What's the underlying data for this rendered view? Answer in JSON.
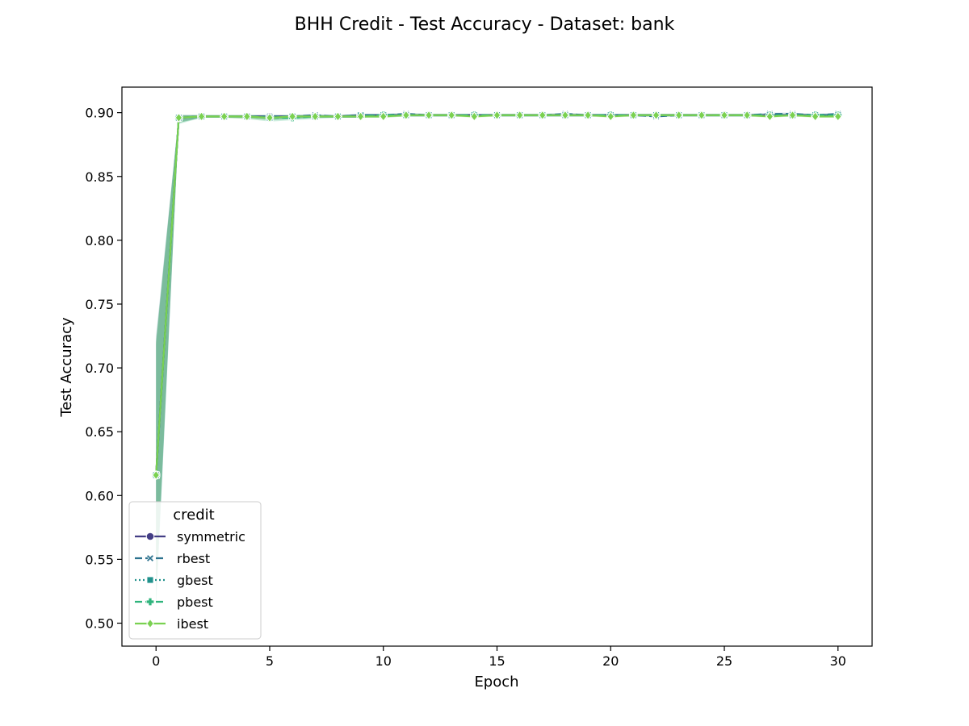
{
  "chart_data": {
    "type": "line",
    "title": "BHH Credit - Test Accuracy - Dataset: bank",
    "xlabel": "Epoch",
    "ylabel": "Test Accuracy",
    "xlim": [
      -1.5,
      31.5
    ],
    "ylim": [
      0.482,
      0.92
    ],
    "xticks": [
      0,
      5,
      10,
      15,
      20,
      25,
      30
    ],
    "yticks": [
      0.5,
      0.55,
      0.6,
      0.65,
      0.7,
      0.75,
      0.8,
      0.85,
      0.9
    ],
    "ytick_labels": [
      "0.50",
      "0.55",
      "0.60",
      "0.65",
      "0.70",
      "0.75",
      "0.80",
      "0.85",
      "0.90"
    ],
    "xtick_labels": [
      "0",
      "5",
      "10",
      "15",
      "20",
      "25",
      "30"
    ],
    "grid": false,
    "legend": {
      "title": "credit",
      "placement": "lower-left"
    },
    "x": [
      0,
      1,
      2,
      3,
      4,
      5,
      6,
      7,
      8,
      9,
      10,
      11,
      12,
      13,
      14,
      15,
      16,
      17,
      18,
      19,
      20,
      21,
      22,
      23,
      24,
      25,
      26,
      27,
      28,
      29,
      30
    ],
    "series": [
      {
        "name": "symmetric",
        "color": "#433e85",
        "dash": "solid",
        "marker": "circle",
        "values": [
          0.616,
          0.896,
          0.897,
          0.897,
          0.897,
          0.897,
          0.897,
          0.897,
          0.897,
          0.898,
          0.898,
          0.898,
          0.898,
          0.898,
          0.898,
          0.898,
          0.898,
          0.898,
          0.898,
          0.898,
          0.898,
          0.898,
          0.898,
          0.898,
          0.898,
          0.898,
          0.898,
          0.898,
          0.898,
          0.898,
          0.898
        ],
        "band_low": [
          0.52,
          0.893,
          0.896,
          0.896,
          0.896,
          0.895,
          0.896,
          0.896,
          0.896,
          0.896,
          0.897,
          0.897,
          0.897,
          0.897,
          0.897,
          0.897,
          0.897,
          0.897,
          0.897,
          0.897,
          0.897,
          0.897,
          0.897,
          0.897,
          0.897,
          0.897,
          0.897,
          0.897,
          0.897,
          0.897,
          0.897
        ],
        "band_high": [
          0.72,
          0.898,
          0.898,
          0.898,
          0.898,
          0.898,
          0.898,
          0.898,
          0.898,
          0.899,
          0.899,
          0.899,
          0.899,
          0.899,
          0.899,
          0.899,
          0.899,
          0.899,
          0.899,
          0.899,
          0.899,
          0.899,
          0.899,
          0.899,
          0.899,
          0.899,
          0.899,
          0.899,
          0.899,
          0.899,
          0.899
        ]
      },
      {
        "name": "rbest",
        "color": "#2c728e",
        "dash": "dashed",
        "marker": "x",
        "values": [
          0.616,
          0.896,
          0.897,
          0.897,
          0.897,
          0.897,
          0.897,
          0.898,
          0.897,
          0.898,
          0.898,
          0.899,
          0.898,
          0.898,
          0.898,
          0.898,
          0.898,
          0.898,
          0.899,
          0.898,
          0.898,
          0.898,
          0.897,
          0.898,
          0.898,
          0.898,
          0.898,
          0.899,
          0.899,
          0.898,
          0.899
        ],
        "band_low": [
          0.51,
          0.892,
          0.896,
          0.896,
          0.896,
          0.895,
          0.895,
          0.896,
          0.896,
          0.896,
          0.897,
          0.897,
          0.897,
          0.897,
          0.897,
          0.897,
          0.897,
          0.897,
          0.897,
          0.897,
          0.897,
          0.897,
          0.897,
          0.897,
          0.897,
          0.897,
          0.897,
          0.897,
          0.897,
          0.897,
          0.897
        ],
        "band_high": [
          0.725,
          0.898,
          0.898,
          0.898,
          0.898,
          0.898,
          0.898,
          0.899,
          0.898,
          0.899,
          0.899,
          0.9,
          0.899,
          0.899,
          0.899,
          0.899,
          0.899,
          0.899,
          0.9,
          0.899,
          0.899,
          0.899,
          0.899,
          0.899,
          0.899,
          0.899,
          0.899,
          0.9,
          0.9,
          0.899,
          0.9
        ]
      },
      {
        "name": "gbest",
        "color": "#21918c",
        "dash": "dotted",
        "marker": "square",
        "values": [
          0.616,
          0.896,
          0.897,
          0.897,
          0.897,
          0.896,
          0.897,
          0.897,
          0.897,
          0.898,
          0.898,
          0.898,
          0.898,
          0.898,
          0.898,
          0.898,
          0.898,
          0.898,
          0.898,
          0.898,
          0.898,
          0.898,
          0.898,
          0.898,
          0.898,
          0.898,
          0.898,
          0.898,
          0.898,
          0.898,
          0.898
        ],
        "band_low": [
          0.515,
          0.892,
          0.896,
          0.896,
          0.896,
          0.894,
          0.895,
          0.896,
          0.896,
          0.896,
          0.897,
          0.897,
          0.897,
          0.897,
          0.897,
          0.897,
          0.897,
          0.897,
          0.897,
          0.897,
          0.897,
          0.897,
          0.897,
          0.897,
          0.897,
          0.897,
          0.897,
          0.897,
          0.897,
          0.897,
          0.897
        ],
        "band_high": [
          0.718,
          0.898,
          0.898,
          0.898,
          0.898,
          0.898,
          0.898,
          0.898,
          0.898,
          0.899,
          0.899,
          0.899,
          0.899,
          0.899,
          0.899,
          0.899,
          0.899,
          0.899,
          0.899,
          0.899,
          0.899,
          0.899,
          0.899,
          0.899,
          0.899,
          0.899,
          0.899,
          0.899,
          0.899,
          0.899,
          0.899
        ]
      },
      {
        "name": "pbest",
        "color": "#2fb47c",
        "dash": "dashed",
        "marker": "plus",
        "values": [
          0.616,
          0.896,
          0.897,
          0.897,
          0.897,
          0.896,
          0.896,
          0.897,
          0.897,
          0.897,
          0.898,
          0.898,
          0.898,
          0.898,
          0.898,
          0.898,
          0.898,
          0.898,
          0.898,
          0.898,
          0.898,
          0.898,
          0.898,
          0.898,
          0.898,
          0.898,
          0.898,
          0.898,
          0.898,
          0.898,
          0.898
        ],
        "band_low": [
          0.512,
          0.891,
          0.896,
          0.896,
          0.895,
          0.893,
          0.894,
          0.895,
          0.896,
          0.896,
          0.896,
          0.897,
          0.897,
          0.897,
          0.897,
          0.897,
          0.897,
          0.897,
          0.897,
          0.897,
          0.897,
          0.897,
          0.897,
          0.897,
          0.897,
          0.897,
          0.897,
          0.897,
          0.897,
          0.897,
          0.897
        ],
        "band_high": [
          0.722,
          0.898,
          0.898,
          0.898,
          0.898,
          0.898,
          0.898,
          0.898,
          0.898,
          0.898,
          0.899,
          0.899,
          0.899,
          0.899,
          0.899,
          0.899,
          0.899,
          0.899,
          0.899,
          0.899,
          0.899,
          0.899,
          0.899,
          0.899,
          0.899,
          0.899,
          0.899,
          0.899,
          0.899,
          0.899,
          0.899
        ]
      },
      {
        "name": "ibest",
        "color": "#7ad151",
        "dash": "solid",
        "marker": "diamond",
        "values": [
          0.616,
          0.896,
          0.897,
          0.897,
          0.897,
          0.896,
          0.897,
          0.897,
          0.897,
          0.897,
          0.897,
          0.898,
          0.898,
          0.898,
          0.897,
          0.898,
          0.898,
          0.898,
          0.898,
          0.898,
          0.897,
          0.898,
          0.898,
          0.898,
          0.898,
          0.898,
          0.898,
          0.897,
          0.898,
          0.897,
          0.897
        ],
        "band_low": [
          0.518,
          0.892,
          0.896,
          0.896,
          0.895,
          0.894,
          0.895,
          0.896,
          0.896,
          0.896,
          0.896,
          0.897,
          0.897,
          0.897,
          0.896,
          0.897,
          0.897,
          0.897,
          0.897,
          0.897,
          0.896,
          0.897,
          0.897,
          0.897,
          0.897,
          0.897,
          0.897,
          0.896,
          0.897,
          0.896,
          0.896
        ],
        "band_high": [
          0.72,
          0.898,
          0.898,
          0.898,
          0.898,
          0.898,
          0.898,
          0.898,
          0.898,
          0.898,
          0.898,
          0.899,
          0.899,
          0.899,
          0.898,
          0.899,
          0.899,
          0.899,
          0.899,
          0.899,
          0.898,
          0.899,
          0.899,
          0.899,
          0.899,
          0.899,
          0.899,
          0.898,
          0.899,
          0.898,
          0.898
        ]
      }
    ]
  }
}
